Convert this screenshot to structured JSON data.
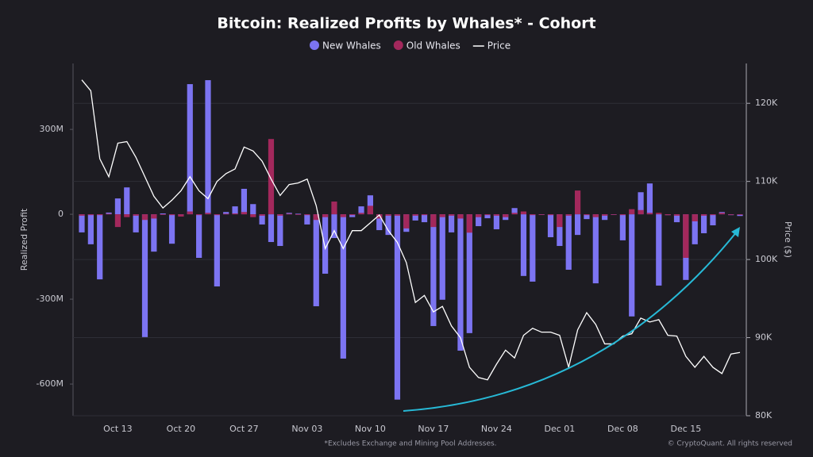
{
  "chart_data": {
    "type": "bar",
    "title": "Bitcoin: Realized Profits by Whales* - Cohort",
    "ylabel": "Realized Profit",
    "y2label": "Price ($)",
    "footnote": "*Excludes Exchange and Mining Pool Addresses.",
    "credit": "© CryptoQuant. All rights reserved",
    "categories": [
      null,
      null,
      null,
      null,
      "Oct 13",
      null,
      null,
      null,
      null,
      null,
      null,
      "Oct 20",
      null,
      null,
      null,
      null,
      null,
      null,
      "Oct 27",
      null,
      null,
      null,
      null,
      null,
      null,
      "Nov 03",
      null,
      null,
      null,
      null,
      null,
      null,
      "Nov 10",
      null,
      null,
      null,
      null,
      null,
      null,
      "Nov 17",
      null,
      null,
      null,
      null,
      null,
      null,
      "Nov 24",
      null,
      null,
      null,
      null,
      null,
      null,
      "Dec 01",
      null,
      null,
      null,
      null,
      null,
      null,
      "Dec 08",
      null,
      null,
      null,
      null,
      null,
      null,
      "Dec 15",
      null,
      null,
      null,
      null,
      null,
      null
    ],
    "series": [
      {
        "name": "New Whales",
        "color": "#7c74f2",
        "values": [
          -64,
          -106,
          -230,
          6,
          56,
          95,
          -64,
          -434,
          -132,
          3,
          -104,
          -3,
          460,
          -154,
          474,
          -255,
          8,
          28,
          90,
          36,
          -36,
          -98,
          -112,
          5,
          2,
          -36,
          -325,
          -210,
          -84,
          -510,
          -10,
          28,
          67,
          -56,
          -73,
          -655,
          -62,
          -22,
          -28,
          -395,
          -302,
          -64,
          -482,
          -420,
          -42,
          -14,
          -53,
          -20,
          22,
          -218,
          -238,
          -1,
          -81,
          -112,
          -196,
          -73,
          -17,
          -244,
          -20,
          -2,
          -92,
          -361,
          78,
          109,
          -252,
          -3,
          -28,
          -232,
          -106,
          -67,
          -39,
          8,
          -3,
          -6
        ]
      },
      {
        "name": "Old Whales",
        "color": "#a3285c",
        "values": [
          -5,
          -3,
          -3,
          2,
          -45,
          -10,
          -5,
          -20,
          -15,
          0,
          -3,
          -8,
          10,
          -3,
          5,
          -3,
          2,
          3,
          8,
          -10,
          -5,
          266,
          -5,
          2,
          0,
          -3,
          -20,
          -10,
          45,
          -10,
          -3,
          5,
          30,
          -15,
          -5,
          -5,
          -50,
          -5,
          -3,
          -45,
          -10,
          -5,
          -15,
          -65,
          -10,
          -3,
          -5,
          -10,
          5,
          10,
          -3,
          0,
          -3,
          -45,
          -5,
          84,
          -3,
          -10,
          -5,
          0,
          -3,
          18,
          15,
          5,
          5,
          -3,
          -5,
          -154,
          -25,
          -5,
          -3,
          5,
          -2,
          -2
        ]
      },
      {
        "name": "Price",
        "color": "#ffffff",
        "type": "line",
        "axis": "y2",
        "values": [
          123000,
          121600,
          112900,
          110600,
          114900,
          115100,
          113100,
          110600,
          108100,
          106600,
          107600,
          108800,
          110600,
          108800,
          107800,
          110000,
          111000,
          111600,
          114400,
          113900,
          112600,
          110300,
          108200,
          109600,
          109800,
          110300,
          106900,
          101400,
          103700,
          101400,
          103700,
          103700,
          104700,
          105700,
          103700,
          102200,
          99600,
          94500,
          95400,
          93300,
          94000,
          91500,
          90000,
          86200,
          84900,
          84600,
          86600,
          88400,
          87400,
          90300,
          91200,
          90700,
          90700,
          90300,
          86200,
          91000,
          93200,
          91700,
          89200,
          89200,
          90200,
          90500,
          92500,
          92000,
          92300,
          90300,
          90200,
          87600,
          86200,
          87600,
          86200,
          85400,
          87900,
          88100
        ]
      }
    ],
    "ylim": [
      -712,
      533
    ],
    "yticks": [
      {
        "value": -600,
        "label": "-600M"
      },
      {
        "value": -300,
        "label": "-300M"
      },
      0,
      {
        "value": 300,
        "label": "300M"
      }
    ],
    "y2lim": [
      80000,
      125100
    ],
    "y2ticks": [
      {
        "value": 80000,
        "label": "80K"
      },
      {
        "value": 90000,
        "label": "90K"
      },
      {
        "value": 100000,
        "label": "100K"
      },
      {
        "value": 110000,
        "label": "110K"
      },
      {
        "value": 120000,
        "label": "120K"
      }
    ],
    "grid": true
  }
}
